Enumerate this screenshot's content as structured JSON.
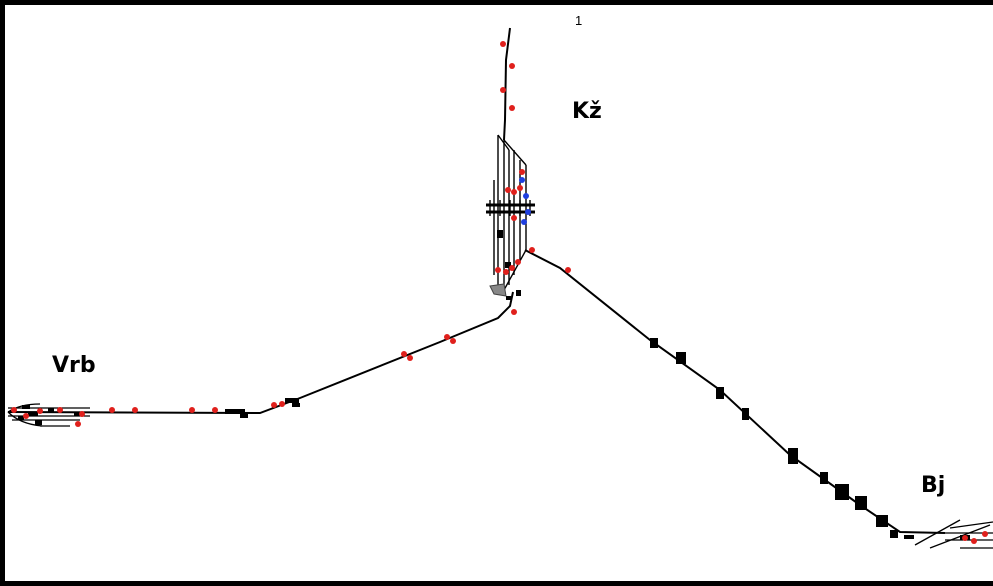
{
  "page_number": "1",
  "stations": [
    {
      "id": "vrb",
      "label": "Vrb"
    },
    {
      "id": "kz",
      "label": "Kž"
    },
    {
      "id": "bj",
      "label": "Bj"
    }
  ],
  "colors": {
    "track": "#000000",
    "signal_main": "#e0201c",
    "signal_shunting": "#1f3fe0",
    "background": "#ffffff",
    "platform": "#888888"
  }
}
